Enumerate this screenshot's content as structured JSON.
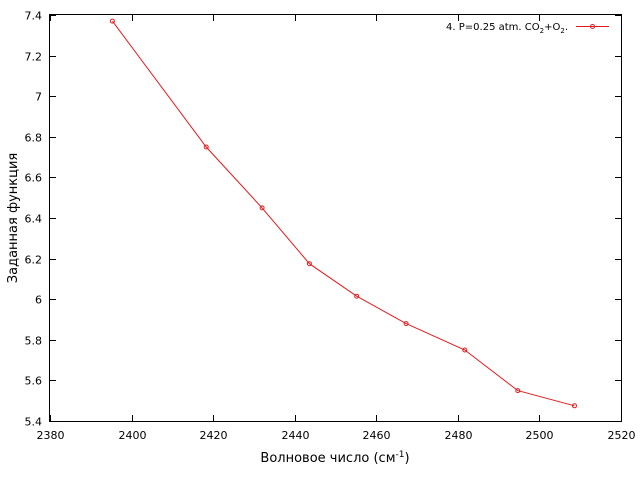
{
  "chart_data": {
    "type": "line",
    "title": "",
    "xlabel": "Волновое число (см",
    "xlabel_sup": "-1",
    "xlabel_suffix": ")",
    "ylabel": "Заданная функция",
    "xlim": [
      2380,
      2520
    ],
    "ylim": [
      5.4,
      7.4
    ],
    "xticks": [
      2380,
      2400,
      2420,
      2440,
      2460,
      2480,
      2500,
      2520
    ],
    "yticks": [
      5.4,
      5.6,
      5.8,
      6,
      6.2,
      6.4,
      6.6,
      6.8,
      7,
      7.2,
      7.4
    ],
    "grid": false,
    "legend_position": "top-right",
    "series": [
      {
        "name": "4. P=0.25 atm. CO2+O2.",
        "legend_parts": [
          "4. P=0.25 atm. CO",
          "2",
          "+O",
          "2",
          "."
        ],
        "color": "#e41a1c",
        "x": [
          2395.3,
          2418.3,
          2432.0,
          2443.6,
          2455.2,
          2467.3,
          2481.7,
          2494.7,
          2508.6
        ],
        "y": [
          7.37,
          6.75,
          6.45,
          6.175,
          6.015,
          5.88,
          5.75,
          5.55,
          5.475
        ]
      }
    ]
  }
}
